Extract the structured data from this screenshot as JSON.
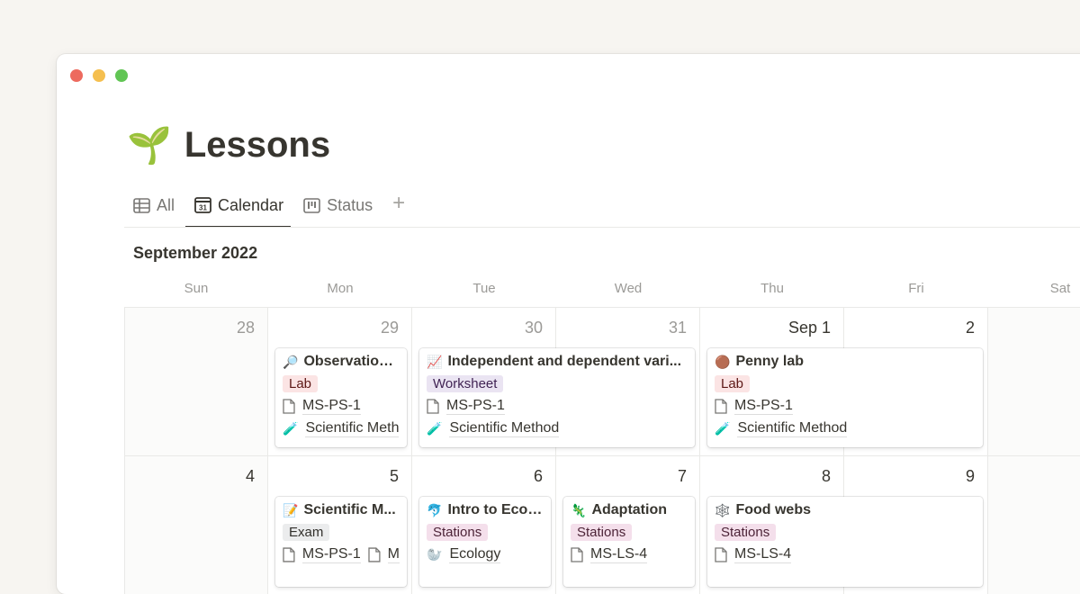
{
  "window": {
    "controls": [
      "close",
      "minimize",
      "maximize"
    ]
  },
  "page": {
    "icon": "🌱",
    "title": "Lessons"
  },
  "tabs": [
    {
      "label": "All",
      "icon": "table-icon"
    },
    {
      "label": "Calendar",
      "icon": "calendar-icon",
      "active": true
    },
    {
      "label": "Status",
      "icon": "board-icon"
    }
  ],
  "add_view": "+",
  "calendar": {
    "month": "September 2022",
    "weekdays": [
      "Sun",
      "Mon",
      "Tue",
      "Wed",
      "Thu",
      "Fri",
      "Sat"
    ],
    "weeks": [
      [
        "28",
        "29",
        "30",
        "31",
        "Sep 1",
        "2",
        ""
      ],
      [
        "4",
        "5",
        "6",
        "7",
        "8",
        "9",
        ""
      ]
    ],
    "events": [
      {
        "title": "Observation...",
        "icon": "🔎",
        "tag": "Lab",
        "standard": "MS-PS-1",
        "unit_icon": "🧪",
        "unit": "Scientific Meth"
      },
      {
        "title": "Independent and dependent vari...",
        "icon": "📈",
        "tag": "Worksheet",
        "standard": "MS-PS-1",
        "unit_icon": "🧪",
        "unit": "Scientific Method"
      },
      {
        "title": "Penny lab",
        "icon": "🟤",
        "tag": "Lab",
        "standard": "MS-PS-1",
        "unit_icon": "🧪",
        "unit": "Scientific Method"
      },
      {
        "title": "Scientific M...",
        "icon": "📝",
        "tag": "Exam",
        "standard": "MS-PS-1",
        "standard2": "M"
      },
      {
        "title": "Intro to Ecol...",
        "icon": "🐬",
        "tag": "Stations",
        "unit_icon": "🦭",
        "unit": "Ecology"
      },
      {
        "title": "Adaptation",
        "icon": "🦎",
        "tag": "Stations",
        "standard": "MS-LS-4"
      },
      {
        "title": "Food webs",
        "icon": "🕸️",
        "tag": "Stations",
        "standard": "MS-LS-4"
      }
    ]
  },
  "colors": {
    "lab": "#fbe4e4",
    "worksheet": "#eae4f2",
    "exam": "#ebeced",
    "stations": "#f4dfeb"
  }
}
